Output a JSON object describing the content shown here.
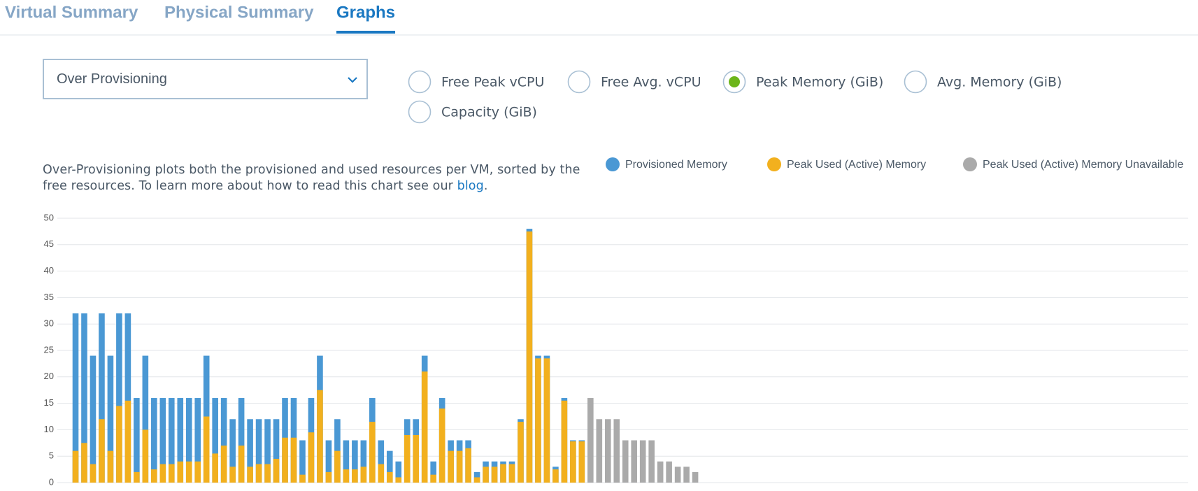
{
  "tabs": [
    {
      "label": "Virtual Summary",
      "active": false
    },
    {
      "label": "Physical Summary",
      "active": false
    },
    {
      "label": "Graphs",
      "active": true
    }
  ],
  "dropdown": {
    "label": "Over Provisioning"
  },
  "options": [
    {
      "label": "Free Peak vCPU",
      "selected": false
    },
    {
      "label": "Free Avg. vCPU",
      "selected": false
    },
    {
      "label": "Peak Memory (GiB)",
      "selected": true
    },
    {
      "label": "Avg. Memory (GiB)",
      "selected": false
    },
    {
      "label": "Capacity (GiB)",
      "selected": false
    }
  ],
  "description": {
    "text": "Over-Provisioning plots both the provisioned and used resources per VM, sorted by the free resources. To learn more about how to read this chart see our ",
    "link": "blog",
    "end": "."
  },
  "chart_data": {
    "type": "bar",
    "categories": [
      null,
      null,
      null,
      null,
      null,
      null,
      null,
      null,
      null,
      null,
      null,
      null,
      null,
      null,
      null,
      null,
      null,
      null,
      null,
      null,
      null,
      null,
      null,
      null,
      null,
      null,
      null,
      null,
      null,
      null,
      null,
      null,
      null,
      null,
      null,
      null,
      null,
      null,
      null,
      null,
      null,
      null,
      null,
      null,
      null,
      null,
      null,
      null,
      null,
      null,
      null,
      null,
      null,
      null,
      null,
      null,
      null,
      null,
      null,
      null,
      null,
      null,
      null,
      null,
      null,
      null,
      null,
      null,
      null,
      null,
      null,
      null
    ],
    "series": [
      {
        "name": "Provisioned Memory",
        "color": "#4a98d4",
        "values": [
          32,
          32,
          24,
          32,
          24,
          32,
          32,
          16,
          24,
          16,
          16,
          16,
          16,
          16,
          16,
          24,
          16,
          16,
          12,
          16,
          12,
          12,
          12,
          12,
          16,
          16,
          8,
          16,
          24,
          8,
          12,
          8,
          8,
          8,
          16,
          8,
          6,
          4,
          12,
          12,
          24,
          4,
          16,
          8,
          8,
          8,
          2,
          4,
          4,
          4,
          4,
          12,
          48,
          24,
          24,
          3,
          16,
          8,
          8,
          null,
          null,
          null,
          null,
          null,
          null,
          null,
          null,
          null,
          null,
          null,
          null,
          null
        ]
      },
      {
        "name": "Peak Used (Active) Memory",
        "color": "#f2b01e",
        "values": [
          6,
          7.5,
          3.5,
          12,
          6,
          14.5,
          15.5,
          2,
          10,
          2.5,
          3.5,
          3.5,
          4,
          4,
          4,
          12.5,
          5.5,
          7,
          3,
          7,
          3,
          3.5,
          3.5,
          4.5,
          8.5,
          8.5,
          1.5,
          9.5,
          17.5,
          2,
          6,
          2.5,
          2.5,
          3,
          11.5,
          3.5,
          2,
          1,
          9,
          9,
          21,
          1.5,
          14,
          6,
          6,
          6.5,
          1,
          3,
          3,
          3.5,
          3.5,
          11.5,
          47.5,
          23.5,
          23.5,
          2.5,
          15.5,
          7.8,
          7.8,
          null,
          null,
          null,
          null,
          null,
          null,
          null,
          null,
          null,
          null,
          null,
          null,
          null
        ]
      },
      {
        "name": "Peak Used (Active) Memory Unavailable",
        "color": "#aaaaaa",
        "values": [
          null,
          null,
          null,
          null,
          null,
          null,
          null,
          null,
          null,
          null,
          null,
          null,
          null,
          null,
          null,
          null,
          null,
          null,
          null,
          null,
          null,
          null,
          null,
          null,
          null,
          null,
          null,
          null,
          null,
          null,
          null,
          null,
          null,
          null,
          null,
          null,
          null,
          null,
          null,
          null,
          null,
          null,
          null,
          null,
          null,
          null,
          null,
          null,
          null,
          null,
          null,
          null,
          null,
          null,
          null,
          null,
          null,
          null,
          null,
          16,
          12,
          12,
          12,
          8,
          8,
          8,
          8,
          4,
          4,
          3,
          3,
          2
        ]
      }
    ],
    "ylim": [
      0,
      50
    ],
    "yticks": [
      0,
      5,
      10,
      15,
      20,
      25,
      30,
      35,
      40,
      45,
      50
    ],
    "grid": true
  }
}
